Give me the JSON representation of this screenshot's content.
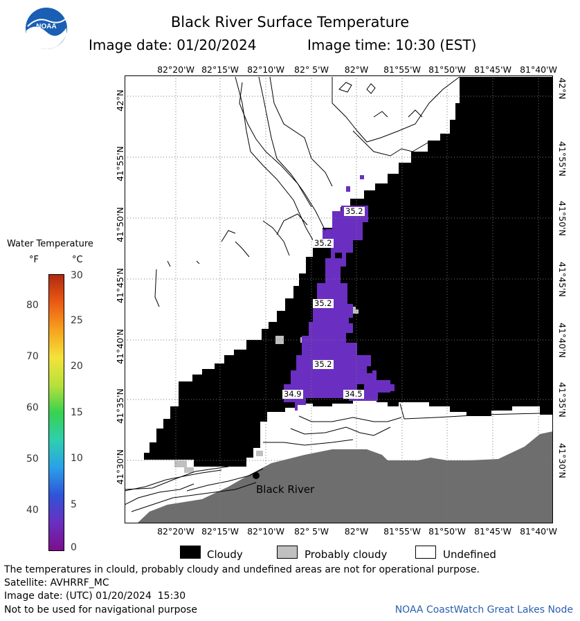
{
  "header": {
    "title": "Black River Surface Temperature",
    "image_date": "Image date: 01/20/2024",
    "image_time": "Image time: 10:30 (EST)"
  },
  "logo": {
    "icon": "noaa-logo-icon",
    "text": "NOAA"
  },
  "map": {
    "lon_labels": [
      "82°20'W",
      "82°15'W",
      "82°10'W",
      "82° 5'W",
      "82°W",
      "81°55'W",
      "81°50'W",
      "81°45'W",
      "81°40'W"
    ],
    "lat_labels": [
      "42°N",
      "41°55'N",
      "41°50'N",
      "41°45'N",
      "41°40'N",
      "41°35'N",
      "41°30'N"
    ],
    "temperature_labels": [
      "35.2",
      "35.2",
      "35.2",
      "35.2",
      "34.9",
      "34.5"
    ],
    "place_label": "Black River"
  },
  "scale": {
    "title": "Water Temperature",
    "unit_f": "°F",
    "unit_c": "°C",
    "f_ticks": [
      "80",
      "70",
      "60",
      "50",
      "40"
    ],
    "c_ticks": [
      "30",
      "25",
      "20",
      "15",
      "10",
      "5",
      "0"
    ],
    "colors": [
      "#7b0f8c",
      "#6a2fc0",
      "#2f54d8",
      "#2aa0e8",
      "#2dcfb0",
      "#37d24f",
      "#b8e03a",
      "#f3e33a",
      "#f7a21f",
      "#ec5a14",
      "#b02a10"
    ]
  },
  "legend": {
    "cloudy": "Cloudy",
    "probably_cloudy": "Probably cloudy",
    "undefined": "Undefined",
    "colors": {
      "cloudy": "#000000",
      "probably_cloudy": "#c0c0c0",
      "undefined": "#ffffff"
    }
  },
  "footer": {
    "note": "The temperatures in clould, probably cloudy and undefined areas are not for operational purpose.",
    "satellite": "Satellite: AVHRRF_MC",
    "utc_date": "Image date: (UTC) 01/20/2024  15:30",
    "nav_warning": "Not to be used for navigational purpose",
    "credit": "NOAA CoastWatch Great Lakes Node",
    "credit_color": "#2a5fb0"
  },
  "colors": {
    "land": "#6e6e6e",
    "water_temp": "#6a2fc0"
  }
}
